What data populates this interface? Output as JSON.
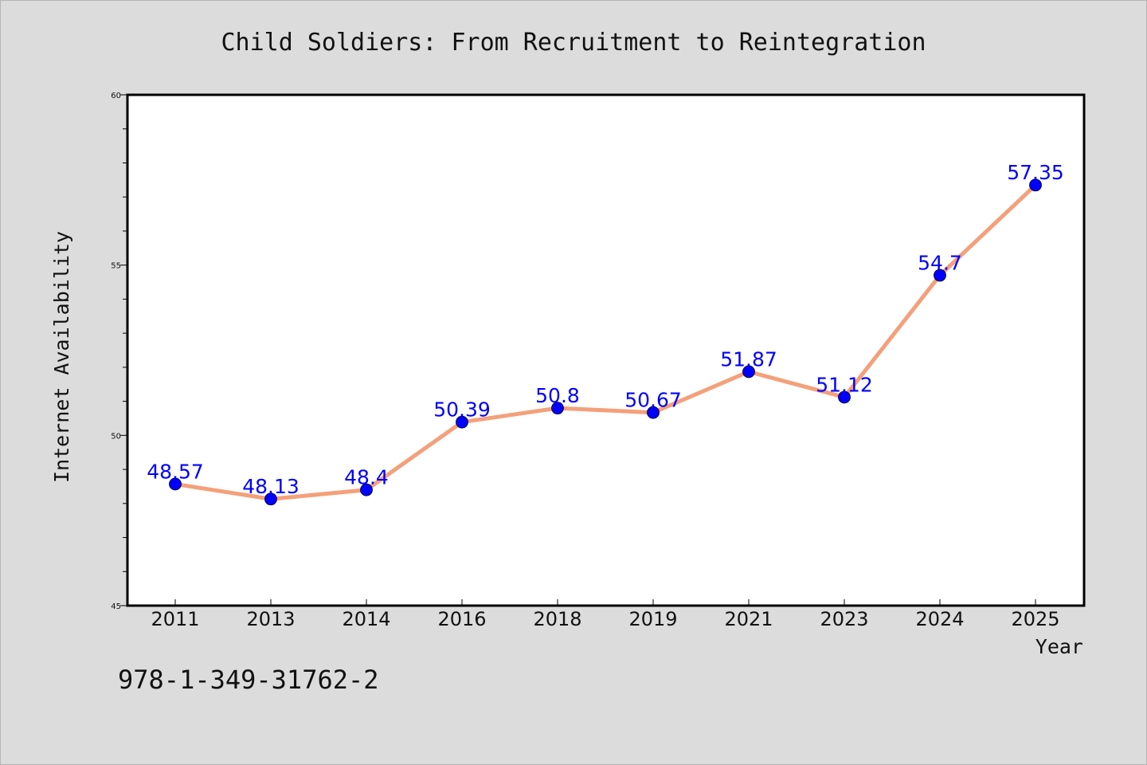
{
  "chart_data": {
    "type": "line",
    "title": "Child Soldiers: From Recruitment to Reintegration",
    "xlabel": "Year",
    "ylabel": "Internet Availability",
    "categories": [
      "2011",
      "2013",
      "2014",
      "2016",
      "2018",
      "2019",
      "2021",
      "2023",
      "2024",
      "2025"
    ],
    "values": [
      48.57,
      48.13,
      48.4,
      50.39,
      50.8,
      50.67,
      51.87,
      51.12,
      54.7,
      57.35
    ],
    "data_labels": [
      "48.57",
      "48.13",
      "48.4",
      "50.39",
      "50.8",
      "50.67",
      "51.87",
      "51.12",
      "54.7",
      "57.35"
    ],
    "ylim": [
      45,
      60
    ],
    "yticks": [
      "45",
      "50",
      "55",
      "60"
    ],
    "grid": false,
    "line_color": "#f4a07a",
    "marker_color": "#0000ff",
    "label_color": "#0000ff"
  },
  "footer": {
    "isbn": "978-1-349-31762-2"
  }
}
